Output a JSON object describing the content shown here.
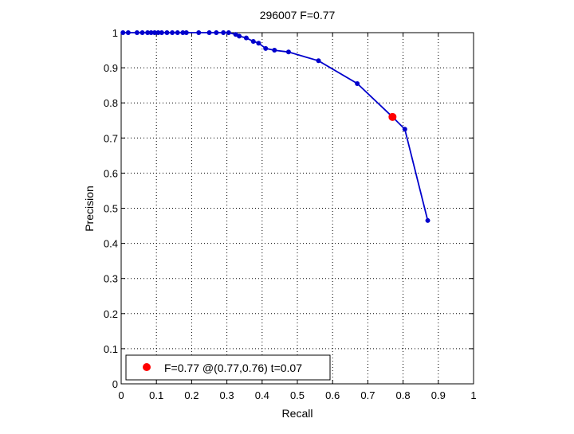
{
  "chart_data": {
    "type": "line",
    "title": "296007 F=0.77",
    "xlabel": "Recall",
    "ylabel": "Precision",
    "xlim": [
      0,
      1
    ],
    "ylim": [
      0,
      1
    ],
    "grid": true,
    "xticks": [
      "0",
      "0.1",
      "0.2",
      "0.3",
      "0.4",
      "0.5",
      "0.6",
      "0.7",
      "0.8",
      "0.9",
      "1"
    ],
    "yticks": [
      "0",
      "0.1",
      "0.2",
      "0.3",
      "0.4",
      "0.5",
      "0.6",
      "0.7",
      "0.8",
      "0.9",
      "1"
    ],
    "series": [
      {
        "color": "#0000cc",
        "x": [
          0.005,
          0.02,
          0.045,
          0.06,
          0.075,
          0.085,
          0.095,
          0.105,
          0.115,
          0.13,
          0.145,
          0.16,
          0.175,
          0.185,
          0.22,
          0.25,
          0.27,
          0.29,
          0.305,
          0.325,
          0.335,
          0.355,
          0.375,
          0.39,
          0.41,
          0.435,
          0.475,
          0.56,
          0.67,
          0.77,
          0.805,
          0.87
        ],
        "y": [
          1.0,
          1.0,
          1.0,
          1.0,
          1.0,
          1.0,
          1.0,
          1.0,
          1.0,
          1.0,
          1.0,
          1.0,
          1.0,
          1.0,
          1.0,
          1.0,
          1.0,
          1.0,
          1.0,
          0.995,
          0.99,
          0.985,
          0.975,
          0.97,
          0.955,
          0.95,
          0.945,
          0.92,
          0.855,
          0.76,
          0.725,
          0.465
        ]
      }
    ],
    "best_point": {
      "x": 0.77,
      "y": 0.76,
      "color": "#ff0000"
    },
    "legend": {
      "position": "bottom-left",
      "label": "F=0.77 @(0.77,0.76) t=0.07"
    }
  }
}
